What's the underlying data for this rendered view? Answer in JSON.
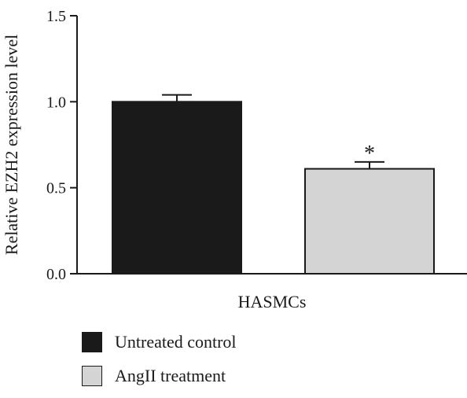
{
  "chart_data": {
    "type": "bar",
    "title": "",
    "xlabel": "HASMCs",
    "ylabel": "Relative EZH2 expression level",
    "ylim": [
      0,
      1.5
    ],
    "yticks": [
      0.0,
      0.5,
      1.0,
      1.5
    ],
    "ytick_labels": [
      "0.0",
      "0.5",
      "1.0",
      "1.5"
    ],
    "categories": [
      "HASMCs"
    ],
    "series": [
      {
        "name": "Untreated control",
        "values": [
          1.0
        ],
        "error": [
          0.04
        ],
        "color": "#1a1a1a",
        "annotation": ""
      },
      {
        "name": "AngII treatment",
        "values": [
          0.61
        ],
        "error": [
          0.04
        ],
        "color": "#d4d4d4",
        "annotation": "*"
      }
    ],
    "legend_position": "bottom-left",
    "grid": false
  }
}
